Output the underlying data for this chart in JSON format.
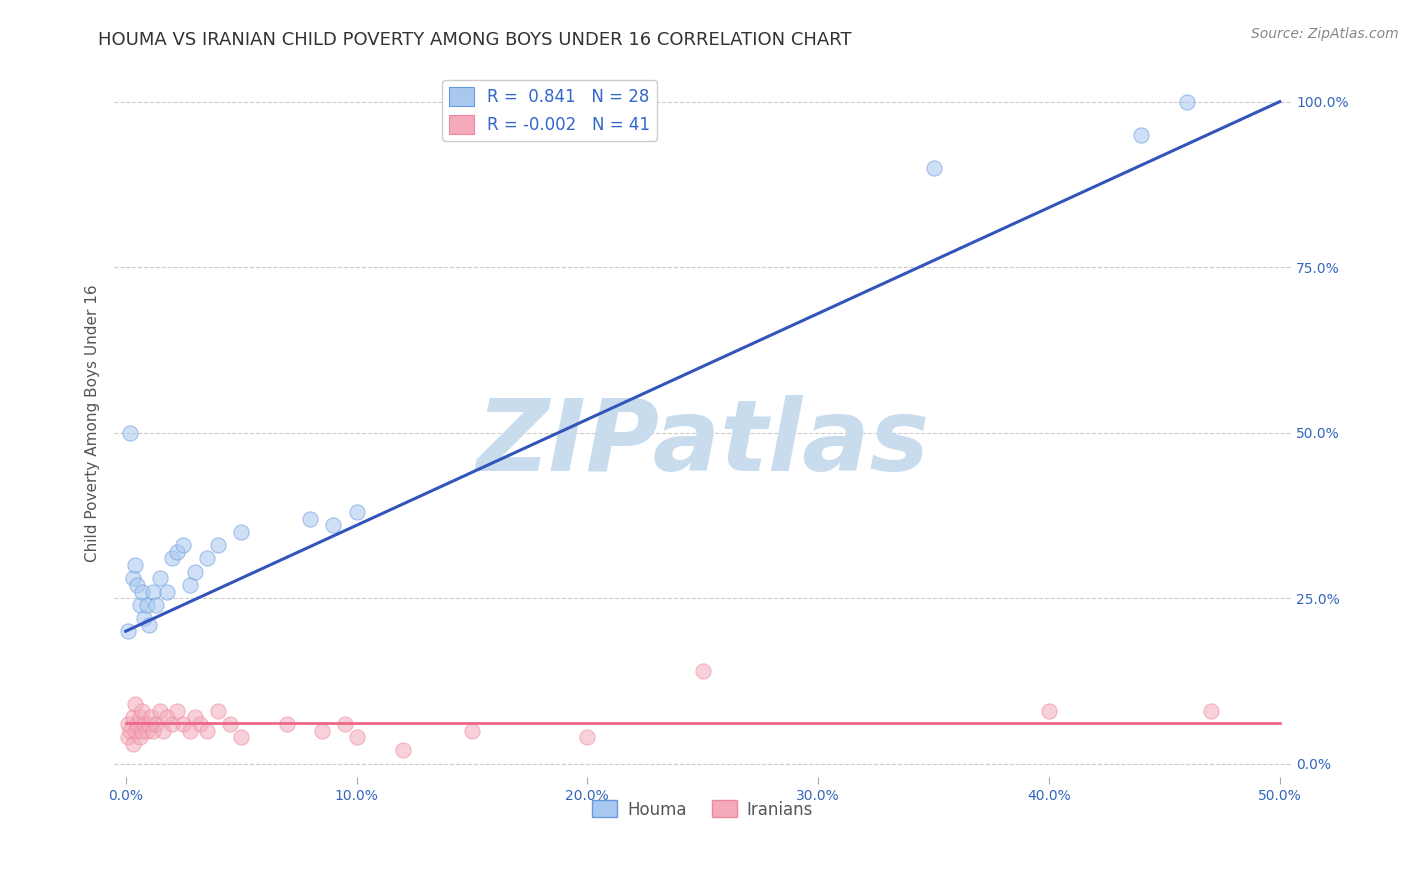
{
  "title": "HOUMA VS IRANIAN CHILD POVERTY AMONG BOYS UNDER 16 CORRELATION CHART",
  "source": "Source: ZipAtlas.com",
  "ylabel": "Child Poverty Among Boys Under 16",
  "xlim": [
    -0.005,
    0.505
  ],
  "ylim": [
    -0.02,
    1.05
  ],
  "xticks": [
    0.0,
    0.1,
    0.2,
    0.3,
    0.4,
    0.5
  ],
  "yticks": [
    0.0,
    0.25,
    0.5,
    0.75,
    1.0
  ],
  "xtick_labels": [
    "0.0%",
    "10.0%",
    "20.0%",
    "30.0%",
    "40.0%",
    "50.0%"
  ],
  "ytick_labels": [
    "0.0%",
    "25.0%",
    "50.0%",
    "75.0%",
    "100.0%"
  ],
  "houma_color": "#A8C8F0",
  "houma_edge_color": "#6699DD",
  "iranian_color": "#F4AABB",
  "iranian_edge_color": "#EE8899",
  "houma_line_color": "#3355BB",
  "iranian_line_color": "#EE6688",
  "houma_R": 0.841,
  "houma_N": 28,
  "iranian_R": -0.002,
  "iranian_N": 41,
  "legend_label_houma": "Houma",
  "legend_label_iranian": "Iranians",
  "watermark": "ZIPatlas",
  "watermark_color": "#C8DCEE",
  "background_color": "#FFFFFF",
  "grid_color": "#CCCCCC",
  "houma_x": [
    0.001,
    0.002,
    0.003,
    0.004,
    0.005,
    0.006,
    0.007,
    0.008,
    0.009,
    0.01,
    0.012,
    0.013,
    0.015,
    0.018,
    0.02,
    0.022,
    0.025,
    0.028,
    0.03,
    0.035,
    0.04,
    0.05,
    0.08,
    0.09,
    0.1,
    0.35,
    0.44,
    0.46
  ],
  "houma_y": [
    0.2,
    0.5,
    0.28,
    0.3,
    0.27,
    0.24,
    0.26,
    0.22,
    0.24,
    0.21,
    0.26,
    0.24,
    0.28,
    0.26,
    0.31,
    0.32,
    0.33,
    0.27,
    0.29,
    0.31,
    0.33,
    0.35,
    0.37,
    0.36,
    0.38,
    0.9,
    0.95,
    1.0
  ],
  "iranian_x": [
    0.001,
    0.001,
    0.002,
    0.003,
    0.003,
    0.004,
    0.004,
    0.005,
    0.006,
    0.006,
    0.007,
    0.007,
    0.008,
    0.009,
    0.01,
    0.011,
    0.012,
    0.013,
    0.015,
    0.016,
    0.018,
    0.02,
    0.022,
    0.025,
    0.028,
    0.03,
    0.032,
    0.035,
    0.04,
    0.045,
    0.05,
    0.07,
    0.085,
    0.095,
    0.1,
    0.12,
    0.15,
    0.2,
    0.25,
    0.4,
    0.47
  ],
  "iranian_y": [
    0.06,
    0.04,
    0.05,
    0.07,
    0.03,
    0.05,
    0.09,
    0.06,
    0.04,
    0.07,
    0.05,
    0.08,
    0.06,
    0.05,
    0.06,
    0.07,
    0.05,
    0.06,
    0.08,
    0.05,
    0.07,
    0.06,
    0.08,
    0.06,
    0.05,
    0.07,
    0.06,
    0.05,
    0.08,
    0.06,
    0.04,
    0.06,
    0.05,
    0.06,
    0.04,
    0.02,
    0.05,
    0.04,
    0.14,
    0.08,
    0.08
  ],
  "houma_line_x": [
    0.0,
    0.5
  ],
  "houma_line_y": [
    0.2,
    1.0
  ],
  "iranian_line_x": [
    0.0,
    0.5
  ],
  "iranian_line_y": [
    0.062,
    0.062
  ],
  "dot_size": 120,
  "dot_alpha": 0.55,
  "title_fontsize": 13,
  "tick_fontsize": 10,
  "legend_fontsize": 12,
  "source_fontsize": 10,
  "ylabel_fontsize": 11
}
